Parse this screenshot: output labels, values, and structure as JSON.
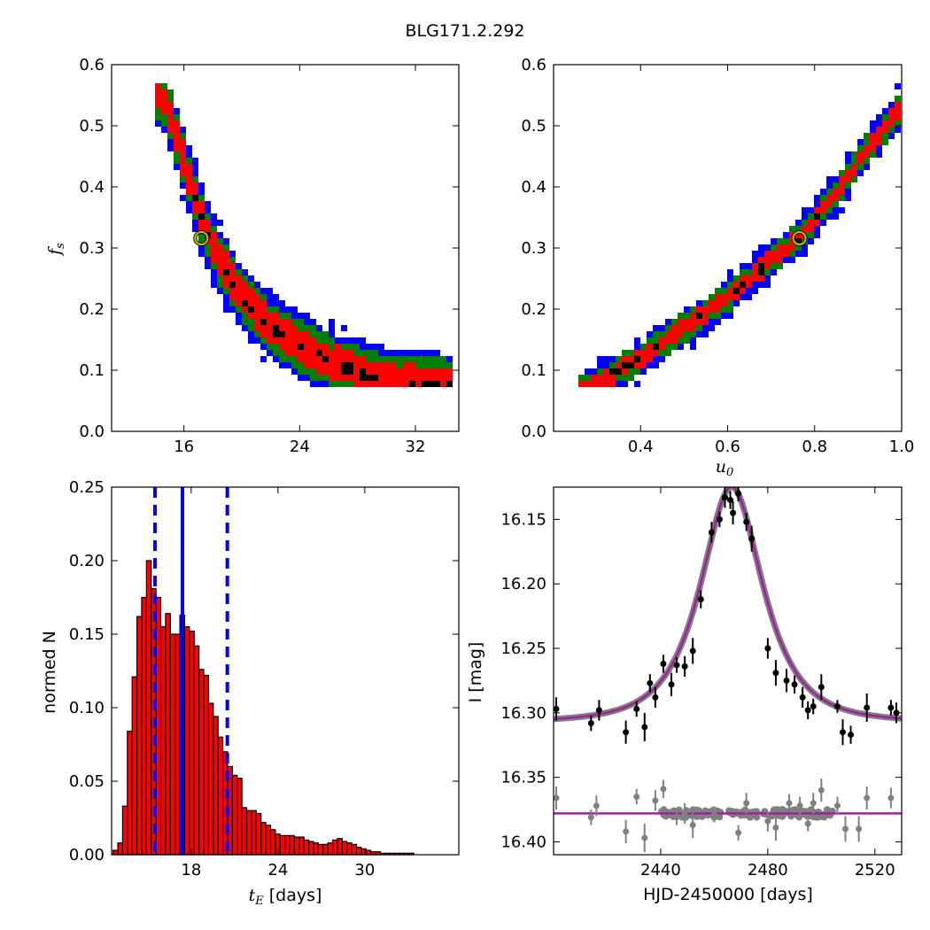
{
  "title": "BLG171.2.292",
  "colors": {
    "blue": "#0000ff",
    "green": "#008000",
    "red": "#ff0000",
    "black": "#000000",
    "gray": "#808080",
    "magenta": "#a020a0",
    "marker": "#c8b400"
  },
  "chart_data": [
    {
      "type": "heatmap",
      "panel": "tE-fs",
      "xlabel": "",
      "ylabel": "f_s",
      "xlim": [
        11,
        35
      ],
      "ylim": [
        0.0,
        0.6
      ],
      "xticks": [
        "16",
        "24",
        "32"
      ],
      "yticks": [
        "0.0",
        "0.1",
        "0.2",
        "0.3",
        "0.4",
        "0.5",
        "0.6"
      ],
      "ridge": [
        [
          14.5,
          0.55
        ],
        [
          15.5,
          0.48
        ],
        [
          16.5,
          0.4
        ],
        [
          17.5,
          0.33
        ],
        [
          18.5,
          0.28
        ],
        [
          20,
          0.22
        ],
        [
          22,
          0.17
        ],
        [
          24,
          0.14
        ],
        [
          26.5,
          0.11
        ],
        [
          29,
          0.09
        ],
        [
          32,
          0.08
        ],
        [
          34.5,
          0.075
        ]
      ],
      "best_fit": [
        17.2,
        0.316
      ]
    },
    {
      "type": "heatmap",
      "panel": "u0-fs",
      "xlabel": "u_0",
      "ylabel": "",
      "xlim": [
        0.2,
        1.0
      ],
      "ylim": [
        0.0,
        0.6
      ],
      "xticks": [
        "0.4",
        "0.6",
        "0.8",
        "1.0"
      ],
      "yticks": [
        "0.0",
        "0.1",
        "0.2",
        "0.3",
        "0.4",
        "0.5",
        "0.6"
      ],
      "ridge": [
        [
          0.28,
          0.07
        ],
        [
          0.4,
          0.12
        ],
        [
          0.5,
          0.17
        ],
        [
          0.6,
          0.22
        ],
        [
          0.7,
          0.28
        ],
        [
          0.77,
          0.32
        ],
        [
          0.85,
          0.39
        ],
        [
          0.92,
          0.46
        ],
        [
          1.0,
          0.53
        ]
      ],
      "best_fit": [
        0.765,
        0.316
      ]
    },
    {
      "type": "bar",
      "panel": "tE-histogram",
      "xlabel": "t_E [days]",
      "ylabel": "normed N",
      "xlim": [
        12.5,
        36.5
      ],
      "ylim": [
        0.0,
        0.25
      ],
      "xticks": [
        "18",
        "24",
        "30"
      ],
      "yticks": [
        "0.00",
        "0.05",
        "0.10",
        "0.15",
        "0.20",
        "0.25"
      ],
      "bin_start": 12.6,
      "bin_width": 0.33,
      "values": [
        0.003,
        0.008,
        0.033,
        0.084,
        0.121,
        0.162,
        0.175,
        0.2,
        0.181,
        0.175,
        0.155,
        0.164,
        0.15,
        0.15,
        0.163,
        0.155,
        0.152,
        0.142,
        0.126,
        0.122,
        0.103,
        0.094,
        0.08,
        0.07,
        0.06,
        0.054,
        0.052,
        0.032,
        0.03,
        0.03,
        0.028,
        0.022,
        0.02,
        0.017,
        0.014,
        0.013,
        0.013,
        0.013,
        0.012,
        0.012,
        0.01,
        0.009,
        0.008,
        0.007,
        0.007,
        0.008,
        0.01,
        0.011,
        0.009,
        0.008,
        0.007,
        0.005,
        0.004,
        0.003,
        0.002,
        0.002,
        0.001,
        0.001,
        0.001,
        0.001,
        0.001,
        0.001,
        0.001
      ],
      "median": 17.4,
      "bounds": [
        15.5,
        20.5
      ]
    },
    {
      "type": "scatter",
      "panel": "light-curve",
      "xlabel": "HJD-2450000 [days]",
      "ylabel": "I [mag]",
      "xlim": [
        2400,
        2530
      ],
      "ylim": [
        16.41,
        16.125
      ],
      "xticks": [
        "2440",
        "2480",
        "2520"
      ],
      "yticks": [
        "16.15",
        "16.20",
        "16.25",
        "16.30",
        "16.35",
        "16.40"
      ],
      "model": {
        "t0": 2466.5,
        "u0": 0.765,
        "tE": 17.2,
        "fs": 0.316,
        "base": 16.307
      },
      "points": [
        [
          2401,
          16.297,
          0.009
        ],
        [
          2414,
          16.308,
          0.006
        ],
        [
          2417,
          16.298,
          0.008
        ],
        [
          2427,
          16.315,
          0.009
        ],
        [
          2431,
          16.297,
          0.006
        ],
        [
          2434,
          16.311,
          0.011
        ],
        [
          2436,
          16.277,
          0.007
        ],
        [
          2438,
          16.288,
          0.008
        ],
        [
          2441,
          16.262,
          0.007
        ],
        [
          2444,
          16.278,
          0.009
        ],
        [
          2446,
          16.263,
          0.006
        ],
        [
          2449,
          16.264,
          0.008
        ],
        [
          2452,
          16.252,
          0.01
        ],
        [
          2455,
          16.212,
          0.007
        ],
        [
          2459,
          16.16,
          0.008
        ],
        [
          2462,
          16.15,
          0.006
        ],
        [
          2464,
          16.133,
          0.008
        ],
        [
          2466,
          16.135,
          0.007
        ],
        [
          2467,
          16.145,
          0.009
        ],
        [
          2469,
          16.13,
          0.006
        ],
        [
          2472,
          16.152,
          0.007
        ],
        [
          2474,
          16.165,
          0.01
        ],
        [
          2480,
          16.25,
          0.008
        ],
        [
          2483,
          16.269,
          0.01
        ],
        [
          2487,
          16.275,
          0.009
        ],
        [
          2490,
          16.278,
          0.007
        ],
        [
          2493,
          16.288,
          0.008
        ],
        [
          2495,
          16.298,
          0.007
        ],
        [
          2497,
          16.295,
          0.006
        ],
        [
          2500,
          16.28,
          0.01
        ],
        [
          2506,
          16.295,
          0.005
        ],
        [
          2508,
          16.315,
          0.01
        ],
        [
          2511,
          16.317,
          0.007
        ],
        [
          2517,
          16.296,
          0.011
        ],
        [
          2526,
          16.296,
          0.006
        ],
        [
          2528,
          16.3,
          0.008
        ]
      ],
      "residual_level": 16.378,
      "residual_points": [
        [
          2401,
          16.366,
          0.009
        ],
        [
          2414,
          16.381,
          0.006
        ],
        [
          2416,
          16.372,
          0.008
        ],
        [
          2427,
          16.392,
          0.009
        ],
        [
          2431,
          16.365,
          0.006
        ],
        [
          2434,
          16.397,
          0.011
        ],
        [
          2438,
          16.368,
          0.008
        ],
        [
          2441,
          16.359,
          0.007
        ],
        [
          2446,
          16.381,
          0.006
        ],
        [
          2449,
          16.378,
          0.008
        ],
        [
          2452,
          16.387,
          0.01
        ],
        [
          2460,
          16.379,
          0.006
        ],
        [
          2469,
          16.393,
          0.006
        ],
        [
          2472,
          16.37,
          0.008
        ],
        [
          2480,
          16.384,
          0.008
        ],
        [
          2483,
          16.389,
          0.01
        ],
        [
          2488,
          16.37,
          0.007
        ],
        [
          2492,
          16.372,
          0.007
        ],
        [
          2495,
          16.386,
          0.006
        ],
        [
          2497,
          16.37,
          0.008
        ],
        [
          2500,
          16.36,
          0.009
        ],
        [
          2506,
          16.372,
          0.007
        ],
        [
          2509,
          16.39,
          0.01
        ],
        [
          2514,
          16.39,
          0.01
        ],
        [
          2517,
          16.366,
          0.009
        ],
        [
          2526,
          16.366,
          0.008
        ]
      ]
    }
  ]
}
